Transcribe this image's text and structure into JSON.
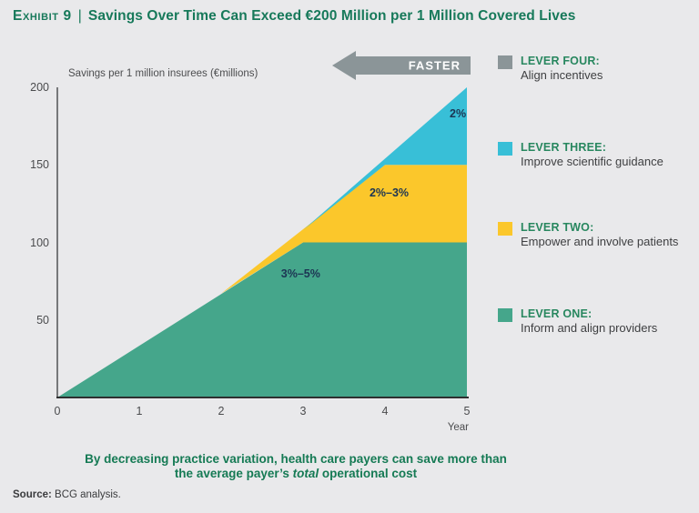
{
  "title": {
    "exhibit_label": "Exhibit 9",
    "separator": "|",
    "text": "Savings Over Time Can Exceed €200 Million per 1 Million Covered Lives"
  },
  "faster_arrow": {
    "label": "FASTER",
    "color": "#8b9598"
  },
  "chart_data": {
    "type": "area",
    "title": "Savings per 1 million insurees (€millions)",
    "ylabel": "Savings per 1 million insurees (€millions)",
    "xlabel": "Year",
    "xlim": [
      0,
      5
    ],
    "ylim": [
      0,
      200
    ],
    "x_ticks": [
      0,
      1,
      2,
      3,
      4,
      5
    ],
    "y_ticks": [
      50,
      100,
      150,
      200
    ],
    "grid": false,
    "legend_position": "right",
    "areas": [
      {
        "name": "lever-one",
        "label": "LEVER ONE: Inform and align providers",
        "color": "#45a68b",
        "polygon": [
          [
            0,
            0
          ],
          [
            3,
            100
          ],
          [
            5,
            100
          ],
          [
            5,
            0
          ]
        ]
      },
      {
        "name": "lever-two",
        "label": "LEVER TWO: Empower and involve patients",
        "color": "#fbc72b",
        "polygon": [
          [
            2,
            67
          ],
          [
            3,
            100
          ],
          [
            5,
            100
          ],
          [
            5,
            150
          ],
          [
            4,
            150
          ]
        ]
      },
      {
        "name": "lever-three",
        "label": "LEVER THREE: Improve scientific guidance",
        "color": "#38bfd7",
        "polygon": [
          [
            3,
            108
          ],
          [
            4,
            150
          ],
          [
            5,
            150
          ],
          [
            5,
            200
          ]
        ]
      }
    ],
    "annotations": [
      {
        "text": "2%",
        "x": 4.89,
        "y": 183
      },
      {
        "text": "2%–3%",
        "x": 4.05,
        "y": 132
      },
      {
        "text": "3%–5%",
        "x": 2.97,
        "y": 80
      }
    ]
  },
  "legend": {
    "items": [
      {
        "name": "lever-four",
        "title": "LEVER FOUR:",
        "subtitle": "Align incentives",
        "color": "#8b9598"
      },
      {
        "name": "lever-three",
        "title": "LEVER THREE:",
        "subtitle": "Improve scientific guidance",
        "color": "#38bfd7"
      },
      {
        "name": "lever-two",
        "title": "LEVER TWO:",
        "subtitle": "Empower and involve patients",
        "color": "#fbc72b"
      },
      {
        "name": "lever-one",
        "title": "LEVER ONE:",
        "subtitle": "Inform and align providers",
        "color": "#45a68b"
      }
    ]
  },
  "message": {
    "line1": "By decreasing practice variation, health care payers can save more than",
    "line2_prefix": "the average payer’s ",
    "line2_italic": "total",
    "line2_suffix": " operational cost"
  },
  "source": {
    "label": "Source:",
    "text": " BCG analysis."
  }
}
